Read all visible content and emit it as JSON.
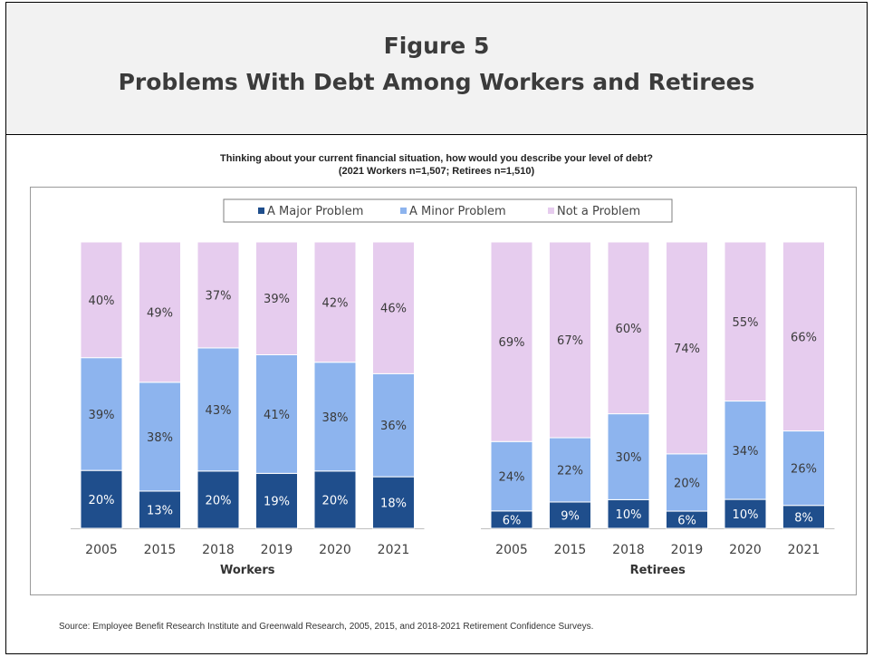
{
  "figure": {
    "title_line1": "Figure 5",
    "title_line2": "Problems With Debt Among Workers and Retirees",
    "subtitle_line1": "Thinking about your current financial situation, how would you describe your level of debt?",
    "subtitle_line2": "(2021 Workers n=1,507; Retirees n=1,510)",
    "source": "Source:  Employee Benefit Research Institute and Greenwald Research, 2005, 2015, and 2018-2021 Retirement Confidence Surveys."
  },
  "colors": {
    "major": "#1f4e8c",
    "minor": "#8db4ee",
    "not": "#e6ccee"
  },
  "chart_data": {
    "type": "bar",
    "stacked": true,
    "ylim": [
      0,
      100
    ],
    "legend": [
      "A Major Problem",
      "A Minor Problem",
      "Not a Problem"
    ],
    "legend_position": "top",
    "grid": false,
    "groups": [
      {
        "label": "Workers",
        "categories": [
          "2005",
          "2015",
          "2018",
          "2019",
          "2020",
          "2021"
        ],
        "series": [
          {
            "name": "A Major Problem",
            "values": [
              20,
              13,
              20,
              19,
              20,
              18
            ],
            "labels": [
              "20%",
              "13%",
              "20%",
              "19%",
              "20%",
              "18%"
            ]
          },
          {
            "name": "A Minor Problem",
            "values": [
              39,
              38,
              43,
              41,
              38,
              36
            ],
            "labels": [
              "39%",
              "38%",
              "43%",
              "41%",
              "38%",
              "36%"
            ]
          },
          {
            "name": "Not a Problem",
            "values": [
              40,
              49,
              37,
              39,
              42,
              46
            ],
            "labels": [
              "40%",
              "49%",
              "37%",
              "39%",
              "42%",
              "46%"
            ]
          }
        ]
      },
      {
        "label": "Retirees",
        "categories": [
          "2005",
          "2015",
          "2018",
          "2019",
          "2020",
          "2021"
        ],
        "series": [
          {
            "name": "A Major Problem",
            "values": [
              6,
              9,
              10,
              6,
              10,
              8
            ],
            "labels": [
              "6%",
              "9%",
              "10%",
              "6%",
              "10%",
              "8%"
            ]
          },
          {
            "name": "A Minor Problem",
            "values": [
              24,
              22,
              30,
              20,
              34,
              26
            ],
            "labels": [
              "24%",
              "22%",
              "30%",
              "20%",
              "34%",
              "26%"
            ]
          },
          {
            "name": "Not a Problem",
            "values": [
              69,
              67,
              60,
              74,
              55,
              66
            ],
            "labels": [
              "69%",
              "67%",
              "60%",
              "74%",
              "55%",
              "66%"
            ]
          }
        ]
      }
    ]
  }
}
